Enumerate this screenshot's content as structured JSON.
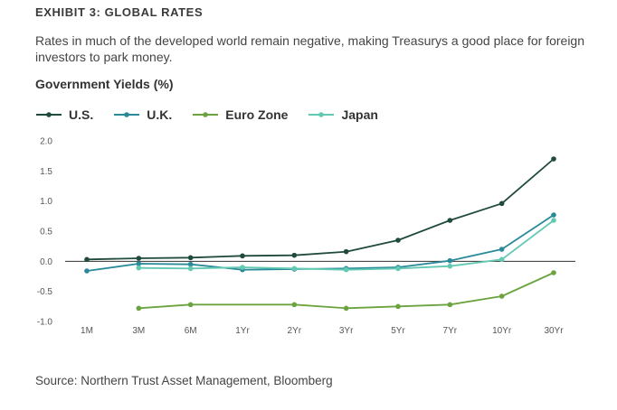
{
  "header": {
    "exhibit": "EXHIBIT 3:  GLOBAL RATES",
    "subtitle": "Rates in much of the developed world remain negative, making Treasurys a good place for foreign investors to park money."
  },
  "footer": {
    "source": "Source: Northern Trust Asset Management, Bloomberg"
  },
  "chart_data": {
    "type": "line",
    "title": "Government Yields (%)",
    "xlabel": "",
    "ylabel": "",
    "categories": [
      "1M",
      "3M",
      "6M",
      "1Yr",
      "2Yr",
      "3Yr",
      "5Yr",
      "7Yr",
      "10Yr",
      "30Yr"
    ],
    "ylim": [
      -1.0,
      2.0
    ],
    "yticks": [
      "2.0",
      "1.5",
      "1.0",
      "0.5",
      "0.0",
      "-0.5",
      "-1.0"
    ],
    "ytick_values": [
      2.0,
      1.5,
      1.0,
      0.5,
      0.0,
      -0.5,
      -1.0
    ],
    "grid": false,
    "legend_position": "top-left",
    "series": [
      {
        "name": "U.S.",
        "color": "#1f4a3d",
        "values": [
          0.03,
          0.05,
          0.06,
          0.09,
          0.1,
          0.16,
          0.35,
          0.68,
          0.96,
          1.7
        ]
      },
      {
        "name": "U.K.",
        "color": "#2a8a9a",
        "values": [
          -0.16,
          -0.04,
          -0.05,
          -0.14,
          -0.13,
          -0.12,
          -0.1,
          0.01,
          0.2,
          0.77
        ]
      },
      {
        "name": "Euro Zone",
        "color": "#6aa33f",
        "values": [
          null,
          -0.78,
          -0.72,
          null,
          -0.72,
          -0.78,
          -0.75,
          -0.72,
          -0.58,
          -0.19
        ]
      },
      {
        "name": "Japan",
        "color": "#62c9b2",
        "values": [
          null,
          -0.11,
          -0.12,
          -0.1,
          -0.12,
          -0.14,
          -0.12,
          -0.08,
          0.03,
          0.68
        ]
      }
    ]
  }
}
